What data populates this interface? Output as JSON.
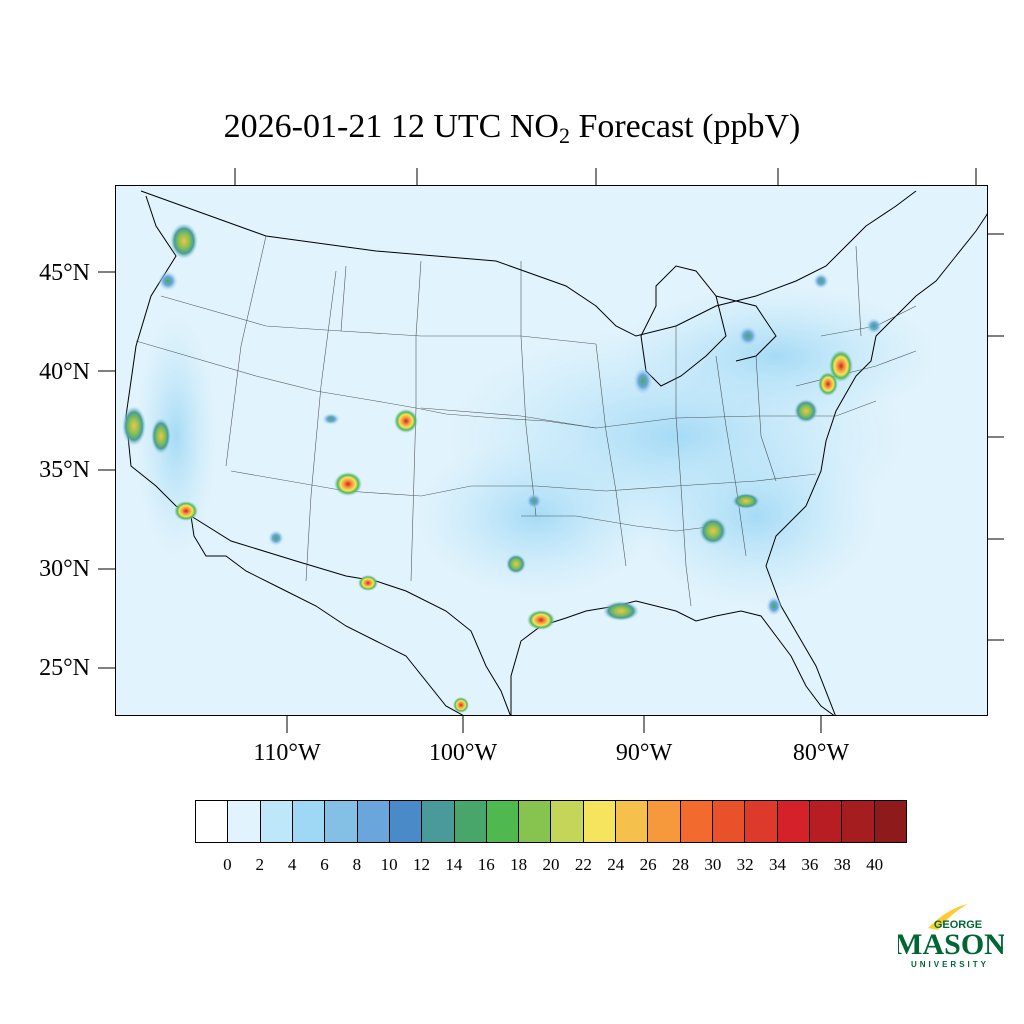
{
  "title": {
    "prefix": "2026-01-21 12 UTC NO",
    "sub": "2",
    "suffix": " Forecast (ppbV)"
  },
  "map": {
    "projection": "lambert-conic",
    "lat_labels": [
      "45°N",
      "40°N",
      "35°N",
      "30°N",
      "25°N"
    ],
    "lon_labels": [
      "110°W",
      "100°W",
      "90°W",
      "80°W"
    ],
    "background_color": "#e1f3fc"
  },
  "colorbar": {
    "colors": [
      "#ffffff",
      "#e1f3fc",
      "#bfe7fa",
      "#9fd8f5",
      "#84bfe6",
      "#6aa6dc",
      "#4a8ac8",
      "#4a9a9a",
      "#48a66a",
      "#4fb84f",
      "#86c34f",
      "#c3d65a",
      "#f4e45e",
      "#f6c04c",
      "#f6983c",
      "#f26a2e",
      "#e9512b",
      "#de3a2b",
      "#d5212a",
      "#b81d24",
      "#a61d20",
      "#8e1a1b"
    ],
    "tick_labels": [
      "0",
      "2",
      "4",
      "6",
      "8",
      "10",
      "12",
      "14",
      "16",
      "18",
      "20",
      "22",
      "24",
      "26",
      "28",
      "30",
      "32",
      "34",
      "36",
      "38",
      "40"
    ]
  },
  "logo": {
    "line1": "GEORGE",
    "line2": "MASON",
    "line3": "UNIVERSITY",
    "color_green": "#006633",
    "color_gold": "#ffcc33"
  }
}
